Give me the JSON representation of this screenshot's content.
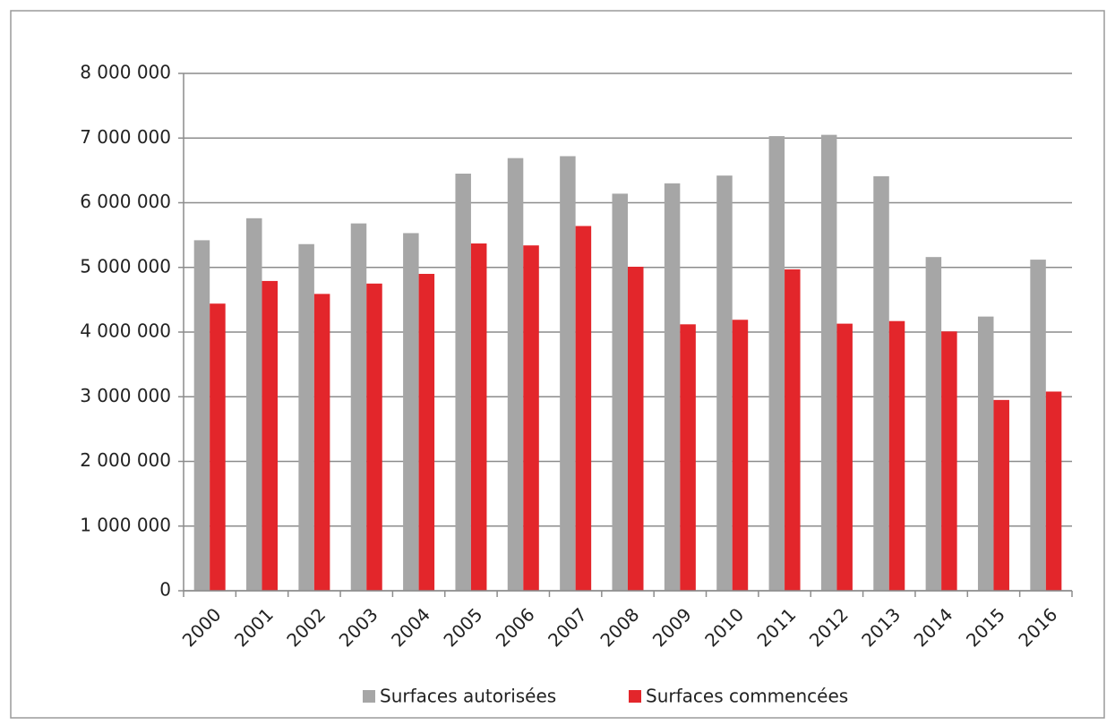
{
  "chart_data": {
    "type": "bar",
    "categories": [
      "2000",
      "2001",
      "2002",
      "2003",
      "2004",
      "2005",
      "2006",
      "2007",
      "2008",
      "2009",
      "2010",
      "2011",
      "2012",
      "2013",
      "2014",
      "2015",
      "2016"
    ],
    "series": [
      {
        "name": "Surfaces autorisées",
        "color": "#a6a6a6",
        "values": [
          5420000,
          5760000,
          5360000,
          5680000,
          5530000,
          6450000,
          6690000,
          6720000,
          6140000,
          6300000,
          6420000,
          7030000,
          7050000,
          6410000,
          5160000,
          4240000,
          5120000
        ]
      },
      {
        "name": "Surfaces commencées",
        "color": "#e3262b",
        "values": [
          4440000,
          4790000,
          4590000,
          4750000,
          4900000,
          5370000,
          5340000,
          5640000,
          5010000,
          4120000,
          4190000,
          4970000,
          4130000,
          4170000,
          4010000,
          2950000,
          3080000
        ]
      }
    ],
    "ylim": [
      0,
      8000000
    ],
    "yticks": [
      0,
      {
        "value": 1000000,
        "label": "1 000 000"
      },
      {
        "value": 2000000,
        "label": "2 000 000"
      },
      {
        "value": 3000000,
        "label": "3 000 000"
      },
      {
        "value": 4000000,
        "label": "4 000 000"
      },
      {
        "value": 5000000,
        "label": "5 000 000"
      },
      {
        "value": 6000000,
        "label": "6 000 000"
      },
      {
        "value": 7000000,
        "label": "7 000 000"
      },
      {
        "value": 8000000,
        "label": "8 000 000"
      }
    ],
    "grid": true
  }
}
